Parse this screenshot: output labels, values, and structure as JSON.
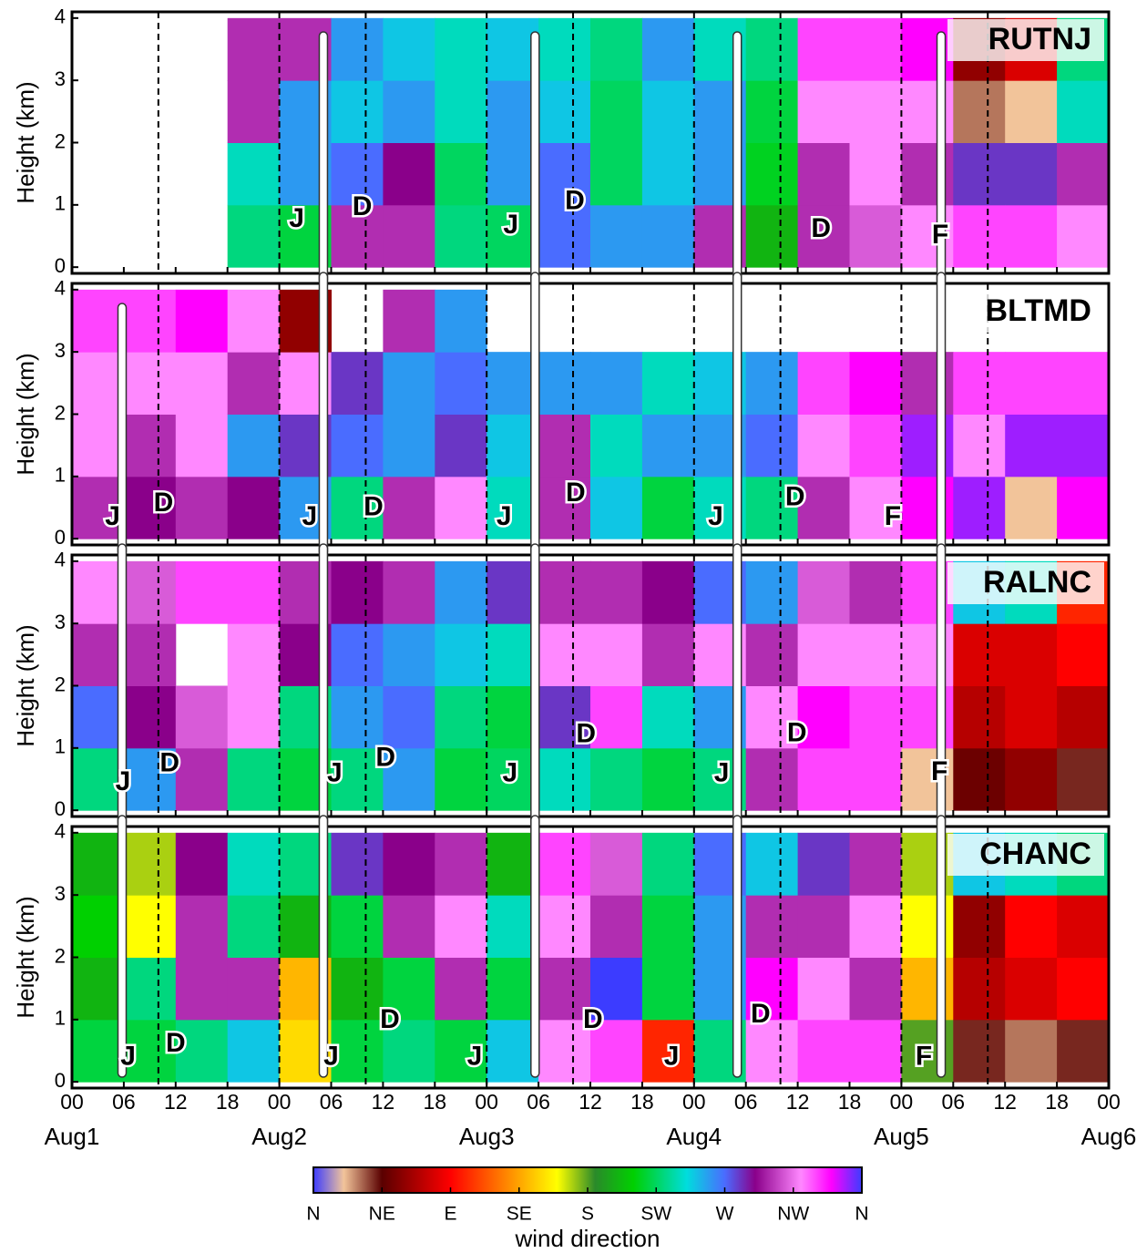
{
  "chart_data": [
    {
      "type": "heatmap",
      "title": "RUTNJ",
      "ylabel": "Height (km)",
      "xlim": [
        0,
        120
      ],
      "ylim": [
        -0.1,
        4.1
      ],
      "yticks": [
        0,
        1,
        2,
        3,
        4
      ],
      "x_bins": [
        0,
        6,
        12,
        18,
        24,
        30,
        36,
        42,
        48,
        54,
        60,
        66,
        72,
        78,
        84,
        90,
        96,
        102,
        108,
        114,
        120
      ],
      "y_bins": [
        0,
        1,
        2,
        3,
        4
      ],
      "values": [
        [
          null,
          null,
          null,
          null
        ],
        [
          null,
          null,
          null,
          null
        ],
        [
          null,
          null,
          null,
          null
        ],
        [
          230,
          240,
          300,
          300
        ],
        [
          220,
          260,
          260,
          300
        ],
        [
          300,
          270,
          250,
          260
        ],
        [
          300,
          290,
          260,
          250
        ],
        [
          230,
          225,
          240,
          240
        ],
        [
          225,
          260,
          260,
          250
        ],
        [
          270,
          270,
          250,
          240
        ],
        [
          260,
          225,
          225,
          230
        ],
        [
          260,
          250,
          250,
          260
        ],
        [
          300,
          260,
          260,
          240
        ],
        [
          200,
          215,
          220,
          230
        ],
        [
          300,
          300,
          320,
          330
        ],
        [
          310,
          320,
          320,
          330
        ],
        [
          320,
          300,
          320,
          340
        ],
        [
          330,
          280,
          30,
          60
        ],
        [
          330,
          280,
          20,
          80
        ],
        [
          320,
          300,
          240,
          230
        ]
      ],
      "dashed_x": [
        10,
        24,
        34,
        48,
        58,
        72,
        82,
        96,
        106
      ],
      "tracks": [
        29.1,
        53.6,
        77,
        100.6
      ],
      "annotations": [
        {
          "text": "J",
          "x": 26,
          "y": 0.76
        },
        {
          "text": "D",
          "x": 33.6,
          "y": 0.95
        },
        {
          "text": "J",
          "x": 50.8,
          "y": 0.66
        },
        {
          "text": "D",
          "x": 58.2,
          "y": 1.05
        },
        {
          "text": "D",
          "x": 86.7,
          "y": 0.6
        },
        {
          "text": "F",
          "x": 100.5,
          "y": 0.5
        }
      ]
    },
    {
      "type": "heatmap",
      "title": "BLTMD",
      "ylabel": "Height (km)",
      "xlim": [
        0,
        120
      ],
      "ylim": [
        -0.1,
        4.1
      ],
      "yticks": [
        0,
        1,
        2,
        3,
        4
      ],
      "x_bins": [
        0,
        6,
        12,
        18,
        24,
        30,
        36,
        42,
        48,
        54,
        60,
        66,
        72,
        78,
        84,
        90,
        96,
        102,
        108,
        114,
        120
      ],
      "y_bins": [
        0,
        1,
        2,
        3,
        4
      ],
      "values": [
        [
          300,
          320,
          320,
          330
        ],
        [
          290,
          300,
          320,
          330
        ],
        [
          300,
          320,
          320,
          340
        ],
        [
          290,
          260,
          300,
          320
        ],
        [
          260,
          280,
          320,
          60
        ],
        [
          230,
          270,
          280,
          null
        ],
        [
          300,
          260,
          260,
          300
        ],
        [
          320,
          280,
          270,
          260
        ],
        [
          240,
          250,
          260,
          null
        ],
        [
          300,
          300,
          260,
          null
        ],
        [
          250,
          240,
          260,
          null
        ],
        [
          220,
          260,
          240,
          null
        ],
        [
          240,
          260,
          250,
          null
        ],
        [
          230,
          270,
          260,
          null
        ],
        [
          300,
          320,
          330,
          null
        ],
        [
          320,
          330,
          340,
          null
        ],
        [
          340,
          350,
          300,
          null
        ],
        [
          350,
          320,
          330,
          null
        ],
        [
          20,
          350,
          330,
          null
        ],
        [
          340,
          350,
          330,
          null
        ]
      ],
      "dashed_x": [
        10,
        24,
        34,
        48,
        58,
        72,
        82,
        96,
        106
      ],
      "tracks": [
        5.8,
        29.1,
        53.6,
        77,
        100.6
      ],
      "annotations": [
        {
          "text": "J",
          "x": 4.7,
          "y": 0.34
        },
        {
          "text": "D",
          "x": 10.6,
          "y": 0.56
        },
        {
          "text": "J",
          "x": 27.5,
          "y": 0.34
        },
        {
          "text": "D",
          "x": 34.9,
          "y": 0.49
        },
        {
          "text": "J",
          "x": 50,
          "y": 0.34
        },
        {
          "text": "D",
          "x": 58.3,
          "y": 0.72
        },
        {
          "text": "J",
          "x": 74.5,
          "y": 0.34
        },
        {
          "text": "D",
          "x": 83.7,
          "y": 0.65
        },
        {
          "text": "F",
          "x": 95,
          "y": 0.34
        }
      ]
    },
    {
      "type": "heatmap",
      "title": "RALNC",
      "ylabel": "Height (km)",
      "xlim": [
        0,
        120
      ],
      "ylim": [
        -0.1,
        4.1
      ],
      "yticks": [
        0,
        1,
        2,
        3,
        4
      ],
      "x_bins": [
        0,
        6,
        12,
        18,
        24,
        30,
        36,
        42,
        48,
        54,
        60,
        66,
        72,
        78,
        84,
        90,
        96,
        102,
        108,
        114,
        120
      ],
      "y_bins": [
        0,
        1,
        2,
        3,
        4
      ],
      "values": [
        [
          230,
          270,
          300,
          320
        ],
        [
          260,
          290,
          300,
          310
        ],
        [
          300,
          310,
          null,
          330
        ],
        [
          230,
          320,
          320,
          330
        ],
        [
          220,
          230,
          290,
          300
        ],
        [
          230,
          260,
          270,
          290
        ],
        [
          260,
          270,
          260,
          300
        ],
        [
          220,
          230,
          250,
          260
        ],
        [
          225,
          220,
          240,
          280
        ],
        [
          240,
          280,
          320,
          300
        ],
        [
          230,
          330,
          320,
          300
        ],
        [
          220,
          240,
          300,
          290
        ],
        [
          230,
          260,
          320,
          270
        ],
        [
          300,
          320,
          300,
          260
        ],
        [
          330,
          340,
          320,
          310
        ],
        [
          330,
          330,
          320,
          300
        ],
        [
          20,
          330,
          320,
          330
        ],
        [
          50,
          70,
          80,
          250
        ],
        [
          60,
          80,
          80,
          240
        ],
        [
          40,
          70,
          90,
          100
        ]
      ],
      "dashed_x": [
        10,
        24,
        34,
        48,
        58,
        72,
        82,
        96,
        106
      ],
      "tracks": [
        5.8,
        29.1,
        53.6,
        77,
        100.6
      ],
      "annotations": [
        {
          "text": "J",
          "x": 5.9,
          "y": 0.44
        },
        {
          "text": "D",
          "x": 11.3,
          "y": 0.74
        },
        {
          "text": "J",
          "x": 30.4,
          "y": 0.58
        },
        {
          "text": "D",
          "x": 36.3,
          "y": 0.83
        },
        {
          "text": "J",
          "x": 50.7,
          "y": 0.58
        },
        {
          "text": "D",
          "x": 59.5,
          "y": 1.21
        },
        {
          "text": "J",
          "x": 75.2,
          "y": 0.58
        },
        {
          "text": "D",
          "x": 83.9,
          "y": 1.22
        },
        {
          "text": "F",
          "x": 100.4,
          "y": 0.6
        }
      ]
    },
    {
      "type": "heatmap",
      "title": "CHANC",
      "ylabel": "Height (km)",
      "xlim": [
        0,
        120
      ],
      "ylim": [
        -0.1,
        4.1
      ],
      "yticks": [
        0,
        1,
        2,
        3,
        4
      ],
      "x_bins": [
        0,
        6,
        12,
        18,
        24,
        30,
        36,
        42,
        48,
        54,
        60,
        66,
        72,
        78,
        84,
        90,
        96,
        102,
        108,
        114,
        120
      ],
      "y_bins": [
        0,
        1,
        2,
        3,
        4
      ],
      "values": [
        [
          220,
          200,
          210,
          200
        ],
        [
          220,
          230,
          160,
          170
        ],
        [
          230,
          300,
          300,
          290
        ],
        [
          250,
          300,
          230,
          240
        ],
        [
          150,
          140,
          200,
          230
        ],
        [
          220,
          200,
          220,
          280
        ],
        [
          230,
          220,
          300,
          290
        ],
        [
          220,
          300,
          320,
          300
        ],
        [
          250,
          220,
          240,
          200
        ],
        [
          320,
          300,
          320,
          330
        ],
        [
          330,
          0,
          300,
          310
        ],
        [
          100,
          220,
          220,
          230
        ],
        [
          230,
          260,
          260,
          270
        ],
        [
          320,
          340,
          300,
          250
        ],
        [
          330,
          320,
          300,
          280
        ],
        [
          330,
          300,
          320,
          300
        ],
        [
          180,
          140,
          160,
          170
        ],
        [
          40,
          70,
          60,
          250
        ],
        [
          30,
          80,
          90,
          240
        ],
        [
          40,
          90,
          80,
          230
        ]
      ],
      "dashed_x": [
        10,
        24,
        34,
        48,
        58,
        72,
        82,
        96,
        106
      ],
      "tracks": [
        5.8,
        29.1,
        53.6,
        77,
        100.6
      ],
      "annotations": [
        {
          "text": "J",
          "x": 6.5,
          "y": 0.39
        },
        {
          "text": "D",
          "x": 12,
          "y": 0.6
        },
        {
          "text": "J",
          "x": 30,
          "y": 0.39
        },
        {
          "text": "D",
          "x": 36.8,
          "y": 0.98
        },
        {
          "text": "J",
          "x": 46.6,
          "y": 0.39
        },
        {
          "text": "D",
          "x": 60.3,
          "y": 0.98
        },
        {
          "text": "J",
          "x": 69.4,
          "y": 0.39
        },
        {
          "text": "D",
          "x": 79.7,
          "y": 1.07
        },
        {
          "text": "F",
          "x": 98.6,
          "y": 0.39
        }
      ],
      "xticks": [
        {
          "value": 0,
          "label": "00"
        },
        {
          "value": 6,
          "label": "06"
        },
        {
          "value": 12,
          "label": "12"
        },
        {
          "value": 18,
          "label": "18"
        },
        {
          "value": 24,
          "label": "00"
        },
        {
          "value": 30,
          "label": "06"
        },
        {
          "value": 36,
          "label": "12"
        },
        {
          "value": 42,
          "label": "18"
        },
        {
          "value": 48,
          "label": "00"
        },
        {
          "value": 54,
          "label": "06"
        },
        {
          "value": 60,
          "label": "12"
        },
        {
          "value": 66,
          "label": "18"
        },
        {
          "value": 72,
          "label": "00"
        },
        {
          "value": 78,
          "label": "06"
        },
        {
          "value": 84,
          "label": "12"
        },
        {
          "value": 90,
          "label": "18"
        },
        {
          "value": 96,
          "label": "00"
        },
        {
          "value": 102,
          "label": "06"
        },
        {
          "value": 108,
          "label": "12"
        },
        {
          "value": 114,
          "label": "18"
        },
        {
          "value": 120,
          "label": "00"
        }
      ],
      "xdate_ticks": [
        {
          "value": 0,
          "label": "Aug1"
        },
        {
          "value": 24,
          "label": "Aug2"
        },
        {
          "value": 48,
          "label": "Aug3"
        },
        {
          "value": 72,
          "label": "Aug4"
        },
        {
          "value": 96,
          "label": "Aug5"
        },
        {
          "value": 120,
          "label": "Aug6"
        }
      ],
      "colorbar": {
        "label": "wind direction",
        "lim": [
          0,
          360
        ],
        "ticks": [
          {
            "value": 0,
            "label": "N"
          },
          {
            "value": 45,
            "label": "NE"
          },
          {
            "value": 90,
            "label": "E"
          },
          {
            "value": 135,
            "label": "SE"
          },
          {
            "value": 180,
            "label": "S"
          },
          {
            "value": 225,
            "label": "SW"
          },
          {
            "value": 270,
            "label": "W"
          },
          {
            "value": 315,
            "label": "NW"
          },
          {
            "value": 360,
            "label": "N"
          }
        ],
        "colormap": [
          {
            "value": 0,
            "color": "#3c3cff"
          },
          {
            "value": 20,
            "color": "#f2c49a"
          },
          {
            "value": 45,
            "color": "#5a0000"
          },
          {
            "value": 90,
            "color": "#ff0000"
          },
          {
            "value": 125,
            "color": "#ff8000"
          },
          {
            "value": 160,
            "color": "#ffff00"
          },
          {
            "value": 185,
            "color": "#2a8a2a"
          },
          {
            "value": 210,
            "color": "#00d000"
          },
          {
            "value": 245,
            "color": "#00dddd"
          },
          {
            "value": 270,
            "color": "#4a6cff"
          },
          {
            "value": 290,
            "color": "#8a008a"
          },
          {
            "value": 320,
            "color": "#ff88ff"
          },
          {
            "value": 340,
            "color": "#ff00ff"
          },
          {
            "value": 360,
            "color": "#3c3cff"
          }
        ]
      }
    }
  ]
}
